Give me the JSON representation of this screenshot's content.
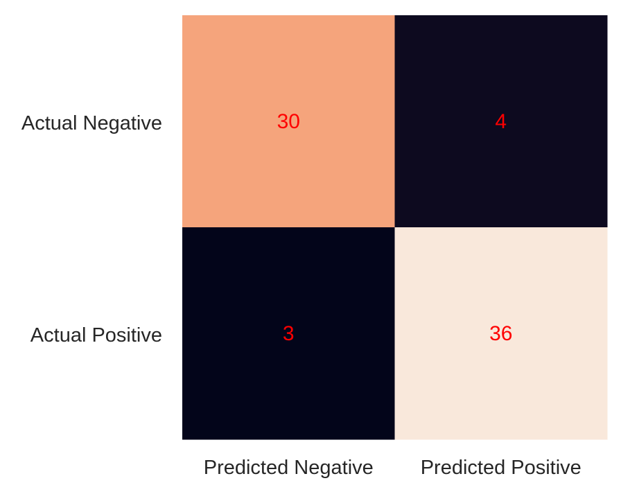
{
  "chart_data": {
    "type": "heatmap",
    "title": "",
    "xlabel": "",
    "ylabel": "",
    "x_categories": [
      "Predicted Negative",
      "Predicted Positive"
    ],
    "y_categories": [
      "Actual Negative",
      "Actual Positive"
    ],
    "values": [
      [
        30,
        4
      ],
      [
        3,
        36
      ]
    ],
    "cell_colors": [
      [
        "#f5a47c",
        "#0d0a1f"
      ],
      [
        "#03051a",
        "#f9e8db"
      ]
    ],
    "annotation_color": "#ff0000",
    "colorbar": false,
    "grid": false,
    "legend": "none"
  }
}
